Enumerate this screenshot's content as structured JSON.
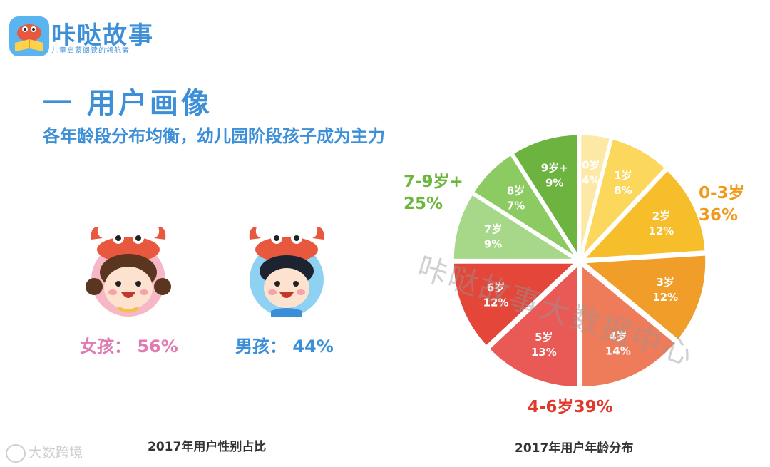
{
  "brand": {
    "name": "咔哒故事",
    "tagline": "儿童启蒙阅读的领航者"
  },
  "heading": {
    "title": "一 用户画像",
    "subtitle": "各年龄段分布均衡，幼儿园阶段孩子成为主力"
  },
  "gender": {
    "girl_label": "女孩： 56%",
    "boy_label": "男孩： 44%"
  },
  "captions": {
    "gender": "2017年用户性别占比",
    "age": "2017年用户年龄分布"
  },
  "watermarks": {
    "diagonal": "咔哒故事大数据中心",
    "corner": "大数跨境"
  },
  "colors": {
    "brand_blue": "#3d8fd8",
    "girl_pink": "#e07ab0",
    "group_orange": "#f09a1c",
    "group_red": "#e0392b",
    "group_green": "#6cb63c"
  },
  "chart_data": [
    {
      "type": "bar",
      "title": "2017年用户性别占比",
      "categories": [
        "女孩",
        "男孩"
      ],
      "values": [
        56,
        44
      ],
      "unit": "%"
    },
    {
      "type": "pie",
      "title": "2017年用户年龄分布",
      "slices": [
        {
          "label": "0岁",
          "value": 4,
          "text": "4%",
          "color": "#fde9a6"
        },
        {
          "label": "1岁",
          "value": 8,
          "text": "8%",
          "color": "#fbd75c"
        },
        {
          "label": "2岁",
          "value": 12,
          "text": "12%",
          "color": "#f6be2a"
        },
        {
          "label": "3岁",
          "value": 12,
          "text": "12%",
          "color": "#f19d2a"
        },
        {
          "label": "4岁",
          "value": 14,
          "text": "14%",
          "color": "#ee7b5a"
        },
        {
          "label": "5岁",
          "value": 13,
          "text": "13%",
          "color": "#e95a57"
        },
        {
          "label": "6岁",
          "value": 12,
          "text": "12%",
          "color": "#e4463a"
        },
        {
          "label": "7岁",
          "value": 9,
          "text": "9%",
          "color": "#a7d88a"
        },
        {
          "label": "8岁",
          "value": 7,
          "text": "7%",
          "color": "#8cca62"
        },
        {
          "label": "9岁+",
          "value": 9,
          "text": "9%",
          "color": "#6db33f"
        }
      ],
      "groups": [
        {
          "name": "0-3岁",
          "pct": "36%",
          "color": "#f09a1c"
        },
        {
          "name": "4-6岁",
          "pct": "39%",
          "color": "#e0392b"
        },
        {
          "name": "7-9岁+",
          "pct": "25%",
          "color": "#6cb63c"
        }
      ]
    }
  ]
}
